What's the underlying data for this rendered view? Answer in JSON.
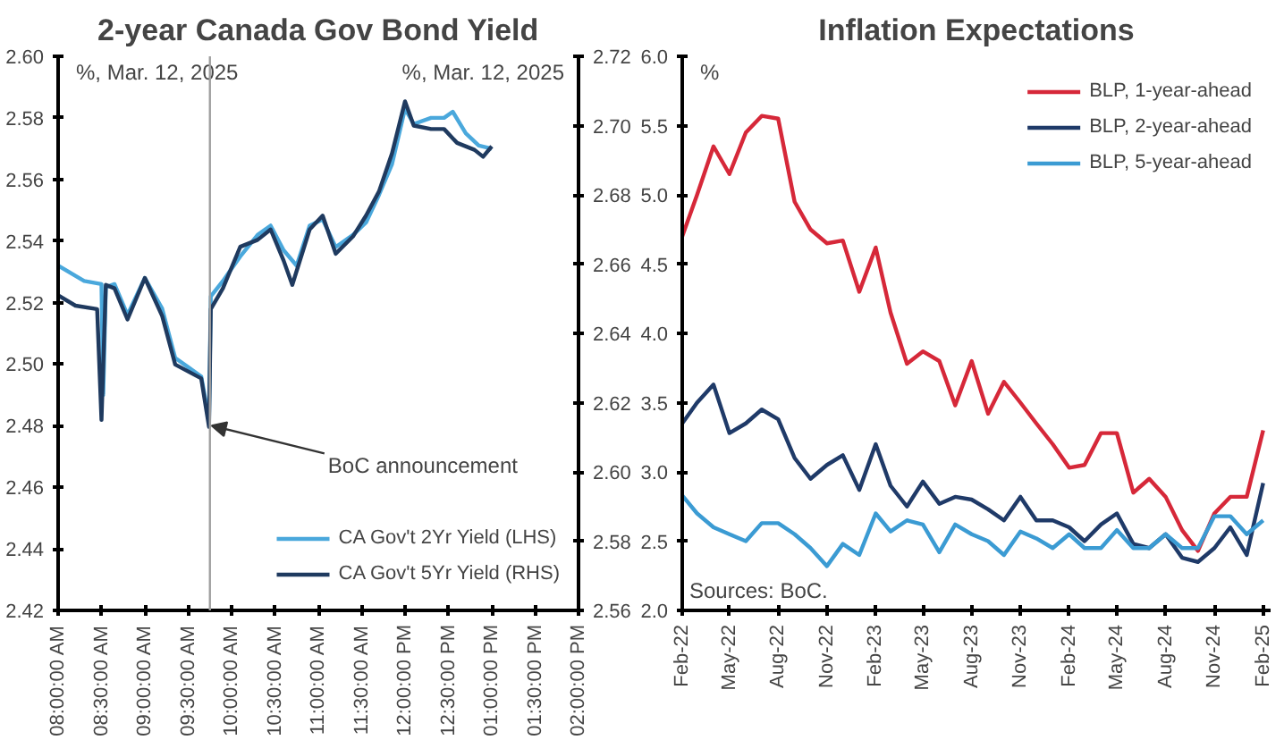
{
  "chart_data": [
    {
      "type": "line",
      "title": "2-year Canada Gov Bond Yield",
      "ylabel": "%, Mar. 12, 2025",
      "y2label": "%, Mar. 12, 2025",
      "legend": "bottom right",
      "grid": false,
      "xlim": [
        8,
        14
      ],
      "xticks": [
        {
          "value": 8,
          "label": "08:00:00 AM"
        },
        {
          "value": 8.5,
          "label": "08:30:00 AM"
        },
        {
          "value": 9,
          "label": "09:00:00 AM"
        },
        {
          "value": 9.5,
          "label": "09:30:00 AM"
        },
        {
          "value": 10,
          "label": "10:00:00 AM"
        },
        {
          "value": 10.5,
          "label": "10:30:00 AM"
        },
        {
          "value": 11,
          "label": "11:00:00 AM"
        },
        {
          "value": 11.5,
          "label": "11:30:00 AM"
        },
        {
          "value": 12,
          "label": "12:00:00 PM"
        },
        {
          "value": 12.5,
          "label": "12:30:00 PM"
        },
        {
          "value": 13,
          "label": "01:00:00 PM"
        },
        {
          "value": 13.5,
          "label": "01:30:00 PM"
        },
        {
          "value": 14,
          "label": "02:00:00 PM"
        }
      ],
      "ylim": [
        2.42,
        2.6
      ],
      "yticks": [
        {
          "value": 2.42,
          "label": "2.42"
        },
        {
          "value": 2.44,
          "label": "2.44"
        },
        {
          "value": 2.46,
          "label": "2.46"
        },
        {
          "value": 2.48,
          "label": "2.48"
        },
        {
          "value": 2.5,
          "label": "2.50"
        },
        {
          "value": 2.52,
          "label": "2.52"
        },
        {
          "value": 2.54,
          "label": "2.54"
        },
        {
          "value": 2.56,
          "label": "2.56"
        },
        {
          "value": 2.58,
          "label": "2.58"
        },
        {
          "value": 2.6,
          "label": "2.60"
        }
      ],
      "y2lim": [
        2.56,
        2.72
      ],
      "y2ticks": [
        {
          "value": 2.56,
          "label": "2.56"
        },
        {
          "value": 2.58,
          "label": "2.58"
        },
        {
          "value": 2.6,
          "label": "2.60"
        },
        {
          "value": 2.62,
          "label": "2.62"
        },
        {
          "value": 2.64,
          "label": "2.64"
        },
        {
          "value": 2.66,
          "label": "2.66"
        },
        {
          "value": 2.68,
          "label": "2.68"
        },
        {
          "value": 2.7,
          "label": "2.70"
        },
        {
          "value": 2.72,
          "label": "2.72"
        }
      ],
      "ref_lines": [
        {
          "axis": "x",
          "value": 9.75,
          "color": "#a0a0a0"
        }
      ],
      "annotations": [
        {
          "text": "BoC announcement",
          "x": 9.75,
          "y": 2.48
        }
      ],
      "series": [
        {
          "name": "CA Gov't 2Yr Yield (LHS)",
          "color": "#4aa8dc",
          "x": [
            8.0,
            8.3,
            8.5,
            8.52,
            8.55,
            8.65,
            8.8,
            9.0,
            9.2,
            9.35,
            9.5,
            9.65,
            9.74,
            9.76,
            9.9,
            10.1,
            10.3,
            10.45,
            10.6,
            10.75,
            10.9,
            11.05,
            11.2,
            11.4,
            11.55,
            11.7,
            11.85,
            12.0,
            12.1,
            12.3,
            12.45,
            12.55,
            12.7,
            12.85,
            13.0
          ],
          "values": [
            2.532,
            2.527,
            2.526,
            2.49,
            2.525,
            2.526,
            2.516,
            2.528,
            2.518,
            2.502,
            2.499,
            2.496,
            2.482,
            2.522,
            2.527,
            2.535,
            2.542,
            2.545,
            2.537,
            2.532,
            2.545,
            2.547,
            2.538,
            2.542,
            2.546,
            2.555,
            2.565,
            2.583,
            2.578,
            2.58,
            2.58,
            2.582,
            2.575,
            2.571,
            2.57
          ]
        },
        {
          "name": "CA Gov't 5Yr Yield (RHS)",
          "color": "#1f3a5f",
          "axis": "y2",
          "x": [
            8.0,
            8.2,
            8.45,
            8.5,
            8.55,
            8.65,
            8.8,
            9.0,
            9.2,
            9.35,
            9.5,
            9.65,
            9.74,
            9.76,
            9.9,
            10.1,
            10.3,
            10.45,
            10.6,
            10.7,
            10.9,
            11.05,
            11.2,
            11.4,
            11.55,
            11.7,
            11.85,
            12.0,
            12.1,
            12.3,
            12.45,
            12.6,
            12.8,
            12.9,
            13.0
          ],
          "values": [
            2.651,
            2.648,
            2.647,
            2.615,
            2.654,
            2.653,
            2.644,
            2.656,
            2.645,
            2.631,
            2.629,
            2.627,
            2.613,
            2.647,
            2.653,
            2.665,
            2.667,
            2.67,
            2.661,
            2.654,
            2.67,
            2.674,
            2.663,
            2.668,
            2.674,
            2.681,
            2.692,
            2.707,
            2.7,
            2.699,
            2.699,
            2.695,
            2.693,
            2.691,
            2.694
          ]
        }
      ]
    },
    {
      "type": "line",
      "title": "Inflation Expectations",
      "ylabel": "%",
      "legend": "top right",
      "grid": false,
      "x": [
        "2022-02",
        "2022-03",
        "2022-04",
        "2022-05",
        "2022-06",
        "2022-07",
        "2022-08",
        "2022-09",
        "2022-10",
        "2022-11",
        "2022-12",
        "2023-01",
        "2023-02",
        "2023-03",
        "2023-04",
        "2023-05",
        "2023-06",
        "2023-07",
        "2023-08",
        "2023-09",
        "2023-10",
        "2023-11",
        "2023-12",
        "2024-01",
        "2024-02",
        "2024-03",
        "2024-04",
        "2024-05",
        "2024-06",
        "2024-07",
        "2024-08",
        "2024-09",
        "2024-10",
        "2024-11",
        "2024-12",
        "2025-01",
        "2025-02"
      ],
      "xlim": [
        "2022-02",
        "2025-02-15"
      ],
      "xticks": [
        {
          "value": "2022-02",
          "label": "Feb-22"
        },
        {
          "value": "2022-05",
          "label": "May-22"
        },
        {
          "value": "2022-08",
          "label": "Aug-22"
        },
        {
          "value": "2022-11",
          "label": "Nov-22"
        },
        {
          "value": "2023-02",
          "label": "Feb-23"
        },
        {
          "value": "2023-05",
          "label": "May-23"
        },
        {
          "value": "2023-08",
          "label": "Aug-23"
        },
        {
          "value": "2023-11",
          "label": "Nov-23"
        },
        {
          "value": "2024-02",
          "label": "Feb-24"
        },
        {
          "value": "2024-05",
          "label": "May-24"
        },
        {
          "value": "2024-08",
          "label": "Aug-24"
        },
        {
          "value": "2024-11",
          "label": "Nov-24"
        },
        {
          "value": "2025-02",
          "label": "Feb-25"
        }
      ],
      "ylim": [
        2,
        6
      ],
      "yticks": [
        {
          "value": 2,
          "label": "2.0"
        },
        {
          "value": 2.5,
          "label": "2.5"
        },
        {
          "value": 3,
          "label": "3.0"
        },
        {
          "value": 3.5,
          "label": "3.5"
        },
        {
          "value": 4,
          "label": "4.0"
        },
        {
          "value": 4.5,
          "label": "4.5"
        },
        {
          "value": 5,
          "label": "5.0"
        },
        {
          "value": 5.5,
          "label": "5.5"
        },
        {
          "value": 6,
          "label": "6.0"
        }
      ],
      "annotations": [
        "Sources: BoC."
      ],
      "series": [
        {
          "name": "BLP, 1-year-ahead",
          "color": "#d62839",
          "values": [
            4.7,
            5.0,
            5.35,
            5.15,
            5.45,
            5.57,
            5.55,
            4.95,
            4.75,
            4.65,
            4.67,
            4.3,
            4.62,
            4.15,
            3.78,
            3.87,
            3.8,
            3.48,
            3.8,
            3.42,
            3.65,
            3.5,
            3.35,
            3.2,
            3.03,
            3.05,
            3.28,
            3.28,
            2.85,
            2.95,
            2.82,
            2.58,
            2.43,
            2.7,
            2.82,
            2.82,
            3.3
          ]
        },
        {
          "name": "BLP, 2-year-ahead",
          "color": "#1f3a68",
          "values": [
            3.35,
            3.5,
            3.63,
            3.28,
            3.35,
            3.45,
            3.38,
            3.1,
            2.95,
            3.05,
            3.12,
            2.87,
            3.2,
            2.9,
            2.75,
            2.93,
            2.77,
            2.82,
            2.8,
            2.73,
            2.65,
            2.82,
            2.65,
            2.65,
            2.6,
            2.5,
            2.62,
            2.7,
            2.48,
            2.45,
            2.55,
            2.38,
            2.35,
            2.45,
            2.6,
            2.4,
            2.92
          ]
        },
        {
          "name": "BLP, 5-year-ahead",
          "color": "#3b9bd3",
          "values": [
            2.83,
            2.7,
            2.6,
            2.55,
            2.5,
            2.63,
            2.63,
            2.55,
            2.45,
            2.32,
            2.48,
            2.4,
            2.7,
            2.57,
            2.65,
            2.62,
            2.42,
            2.62,
            2.55,
            2.5,
            2.4,
            2.57,
            2.52,
            2.45,
            2.55,
            2.45,
            2.45,
            2.58,
            2.45,
            2.45,
            2.55,
            2.45,
            2.45,
            2.68,
            2.68,
            2.55,
            2.65
          ]
        }
      ]
    }
  ]
}
